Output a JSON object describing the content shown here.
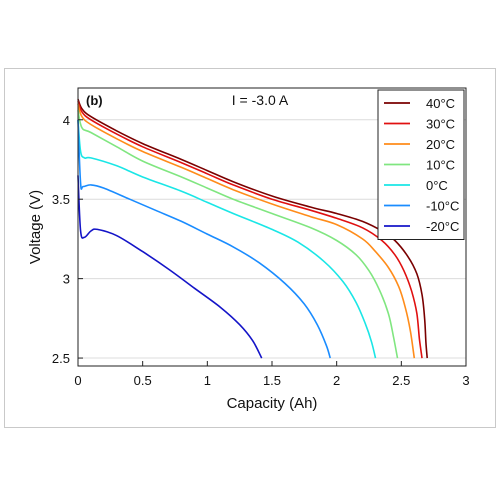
{
  "chart_data": {
    "type": "line",
    "panel_label": "(b)",
    "condition": "I = -3.0 A",
    "xlabel": "Capacity (Ah)",
    "ylabel": "Voltage (V)",
    "xlim": [
      0,
      3
    ],
    "ylim": [
      2.45,
      4.2
    ],
    "xticks": [
      "0",
      "0.5",
      "1",
      "1.5",
      "2",
      "2.5",
      "3"
    ],
    "yticks": [
      "2.5",
      "3",
      "3.5",
      "4"
    ],
    "grid": "horizontal",
    "legend_position": "top-right",
    "series": [
      {
        "name": "40°C",
        "color": "#7a0000",
        "points": [
          [
            0,
            4.13
          ],
          [
            0.03,
            4.07
          ],
          [
            0.1,
            4.02
          ],
          [
            0.3,
            3.93
          ],
          [
            0.5,
            3.85
          ],
          [
            0.8,
            3.75
          ],
          [
            1.0,
            3.68
          ],
          [
            1.2,
            3.61
          ],
          [
            1.5,
            3.52
          ],
          [
            1.8,
            3.45
          ],
          [
            2.0,
            3.41
          ],
          [
            2.2,
            3.36
          ],
          [
            2.35,
            3.3
          ],
          [
            2.45,
            3.24
          ],
          [
            2.55,
            3.14
          ],
          [
            2.62,
            3.03
          ],
          [
            2.66,
            2.9
          ],
          [
            2.68,
            2.75
          ],
          [
            2.69,
            2.6
          ],
          [
            2.7,
            2.5
          ]
        ]
      },
      {
        "name": "30°C",
        "color": "#e01010",
        "points": [
          [
            0,
            4.12
          ],
          [
            0.03,
            4.05
          ],
          [
            0.1,
            4.0
          ],
          [
            0.3,
            3.91
          ],
          [
            0.5,
            3.83
          ],
          [
            0.8,
            3.73
          ],
          [
            1.0,
            3.66
          ],
          [
            1.2,
            3.59
          ],
          [
            1.5,
            3.5
          ],
          [
            1.8,
            3.43
          ],
          [
            2.0,
            3.38
          ],
          [
            2.2,
            3.32
          ],
          [
            2.35,
            3.24
          ],
          [
            2.45,
            3.15
          ],
          [
            2.52,
            3.05
          ],
          [
            2.58,
            2.92
          ],
          [
            2.62,
            2.78
          ],
          [
            2.64,
            2.62
          ],
          [
            2.66,
            2.5
          ]
        ]
      },
      {
        "name": "20°C",
        "color": "#ff8c1a",
        "points": [
          [
            0,
            4.1
          ],
          [
            0.03,
            4.02
          ],
          [
            0.1,
            3.97
          ],
          [
            0.3,
            3.88
          ],
          [
            0.5,
            3.8
          ],
          [
            0.8,
            3.7
          ],
          [
            1.0,
            3.63
          ],
          [
            1.2,
            3.56
          ],
          [
            1.5,
            3.47
          ],
          [
            1.8,
            3.39
          ],
          [
            2.0,
            3.34
          ],
          [
            2.2,
            3.25
          ],
          [
            2.3,
            3.17
          ],
          [
            2.4,
            3.07
          ],
          [
            2.48,
            2.95
          ],
          [
            2.53,
            2.82
          ],
          [
            2.57,
            2.67
          ],
          [
            2.6,
            2.5
          ]
        ]
      },
      {
        "name": "10°C",
        "color": "#80e680",
        "points": [
          [
            0,
            4.06
          ],
          [
            0.03,
            3.95
          ],
          [
            0.1,
            3.92
          ],
          [
            0.3,
            3.83
          ],
          [
            0.5,
            3.74
          ],
          [
            0.8,
            3.64
          ],
          [
            1.0,
            3.57
          ],
          [
            1.2,
            3.5
          ],
          [
            1.5,
            3.41
          ],
          [
            1.8,
            3.32
          ],
          [
            2.0,
            3.24
          ],
          [
            2.15,
            3.15
          ],
          [
            2.25,
            3.05
          ],
          [
            2.33,
            2.93
          ],
          [
            2.4,
            2.78
          ],
          [
            2.44,
            2.63
          ],
          [
            2.47,
            2.5
          ]
        ]
      },
      {
        "name": "0°C",
        "color": "#1ae6e6",
        "points": [
          [
            0,
            4.0
          ],
          [
            0.02,
            3.8
          ],
          [
            0.05,
            3.76
          ],
          [
            0.1,
            3.76
          ],
          [
            0.3,
            3.71
          ],
          [
            0.5,
            3.64
          ],
          [
            0.8,
            3.55
          ],
          [
            1.0,
            3.48
          ],
          [
            1.2,
            3.41
          ],
          [
            1.5,
            3.31
          ],
          [
            1.7,
            3.23
          ],
          [
            1.9,
            3.11
          ],
          [
            2.05,
            2.98
          ],
          [
            2.15,
            2.85
          ],
          [
            2.22,
            2.72
          ],
          [
            2.27,
            2.6
          ],
          [
            2.3,
            2.5
          ]
        ]
      },
      {
        "name": "-10°C",
        "color": "#1a8cff",
        "points": [
          [
            0,
            4.0
          ],
          [
            0.02,
            3.6
          ],
          [
            0.04,
            3.58
          ],
          [
            0.1,
            3.59
          ],
          [
            0.2,
            3.57
          ],
          [
            0.4,
            3.5
          ],
          [
            0.6,
            3.43
          ],
          [
            0.8,
            3.36
          ],
          [
            1.0,
            3.28
          ],
          [
            1.2,
            3.2
          ],
          [
            1.4,
            3.1
          ],
          [
            1.6,
            2.97
          ],
          [
            1.75,
            2.84
          ],
          [
            1.85,
            2.71
          ],
          [
            1.92,
            2.58
          ],
          [
            1.95,
            2.5
          ]
        ]
      },
      {
        "name": "-20°C",
        "color": "#1414c8",
        "points": [
          [
            0,
            3.65
          ],
          [
            0.02,
            3.3
          ],
          [
            0.05,
            3.26
          ],
          [
            0.1,
            3.3
          ],
          [
            0.15,
            3.31
          ],
          [
            0.3,
            3.27
          ],
          [
            0.5,
            3.17
          ],
          [
            0.7,
            3.06
          ],
          [
            0.9,
            2.94
          ],
          [
            1.1,
            2.82
          ],
          [
            1.25,
            2.71
          ],
          [
            1.35,
            2.61
          ],
          [
            1.42,
            2.5
          ]
        ]
      }
    ]
  }
}
